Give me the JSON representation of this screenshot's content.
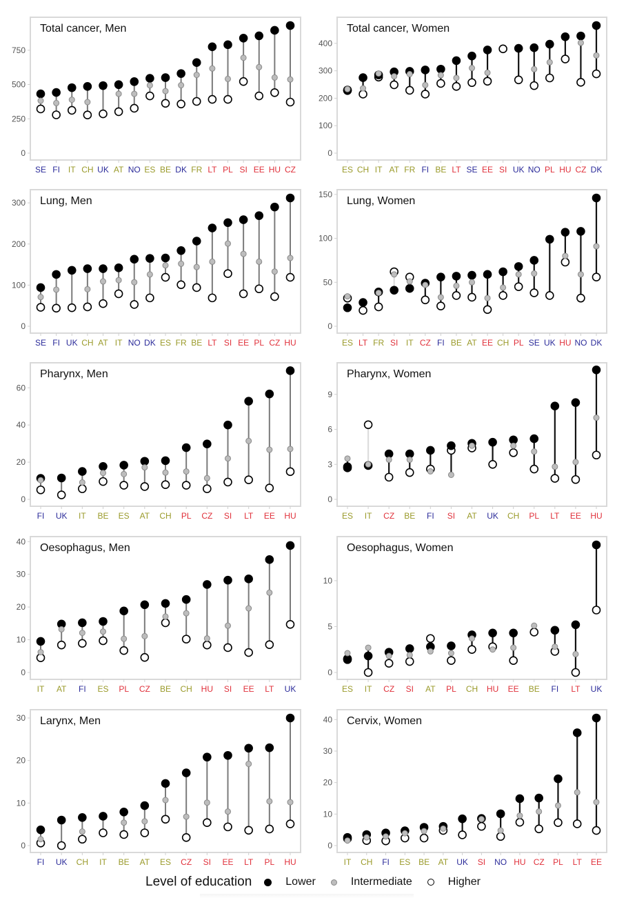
{
  "figure": {
    "legend": {
      "title": "Level of education",
      "items": [
        {
          "key": "lower",
          "label": "Lower"
        },
        {
          "key": "intermediate",
          "label": "Intermediate"
        },
        {
          "key": "higher",
          "label": "Higher"
        }
      ]
    },
    "region_colors": {
      "north": "#2b2b9a",
      "west_south": "#9a9a2a",
      "east": "#e0303a"
    },
    "marker_colors": {
      "lower": "#000000",
      "intermediate": "#bdbdbd",
      "higher": "#ffffff"
    }
  },
  "chart_data": [
    {
      "type": "scatter",
      "title": "Total cancer, Men",
      "ylim": [
        0,
        930
      ],
      "yticks": [
        0,
        250,
        500,
        750
      ],
      "categories": [
        "SE",
        "FI",
        "IT",
        "CH",
        "UK",
        "AT",
        "NO",
        "ES",
        "BE",
        "DK",
        "FR",
        "LT",
        "PL",
        "SI",
        "EE",
        "HU",
        "CZ"
      ],
      "regions": [
        "north",
        "north",
        "west_south",
        "west_south",
        "north",
        "west_south",
        "north",
        "west_south",
        "west_south",
        "north",
        "west_south",
        "east",
        "east",
        "east",
        "east",
        "east",
        "east"
      ],
      "series": [
        {
          "name": "Lower",
          "values": [
            432,
            442,
            477,
            486,
            492,
            499,
            521,
            545,
            550,
            580,
            660,
            775,
            790,
            838,
            855,
            895,
            930
          ]
        },
        {
          "name": "Intermediate",
          "values": [
            382,
            365,
            389,
            372,
            null,
            432,
            432,
            494,
            452,
            495,
            570,
            617,
            541,
            695,
            627,
            551,
            537
          ]
        },
        {
          "name": "Higher",
          "values": [
            322,
            279,
            312,
            278,
            286,
            302,
            327,
            417,
            363,
            358,
            377,
            392,
            392,
            522,
            417,
            441,
            372
          ]
        }
      ]
    },
    {
      "type": "scatter",
      "title": "Total cancer, Women",
      "ylim": [
        0,
        465
      ],
      "yticks": [
        0,
        100,
        200,
        300,
        400
      ],
      "categories": [
        "ES",
        "CH",
        "IT",
        "AT",
        "FR",
        "FI",
        "BE",
        "LT",
        "SE",
        "EE",
        "SI",
        "UK",
        "NO",
        "PL",
        "HU",
        "CZ",
        "DK"
      ],
      "regions": [
        "west_south",
        "west_south",
        "west_south",
        "west_south",
        "west_south",
        "north",
        "west_south",
        "east",
        "north",
        "east",
        "east",
        "north",
        "north",
        "east",
        "east",
        "east",
        "north"
      ],
      "series": [
        {
          "name": "Lower",
          "values": [
            230,
            275,
            285,
            296,
            298,
            303,
            306,
            337,
            354,
            376,
            null,
            382,
            384,
            397,
            424,
            427,
            465
          ]
        },
        {
          "name": "Intermediate",
          "values": [
            233,
            236,
            290,
            280,
            288,
            248,
            284,
            274,
            310,
            293,
            null,
            null,
            306,
            331,
            null,
            402,
            356
          ]
        },
        {
          "name": "Higher",
          "values": [
            228,
            215,
            277,
            249,
            229,
            215,
            254,
            243,
            257,
            262,
            380,
            267,
            246,
            274,
            343,
            258,
            289
          ]
        }
      ]
    },
    {
      "type": "scatter",
      "title": "Lung, Men",
      "ylim": [
        0,
        312
      ],
      "yticks": [
        0,
        100,
        200,
        300
      ],
      "categories": [
        "SE",
        "FI",
        "UK",
        "CH",
        "AT",
        "IT",
        "NO",
        "DK",
        "ES",
        "FR",
        "BE",
        "LT",
        "SI",
        "EE",
        "PL",
        "CZ",
        "HU"
      ],
      "regions": [
        "north",
        "north",
        "north",
        "west_south",
        "west_south",
        "west_south",
        "north",
        "north",
        "west_south",
        "west_south",
        "west_south",
        "east",
        "east",
        "east",
        "east",
        "east",
        "east"
      ],
      "series": [
        {
          "name": "Lower",
          "values": [
            94,
            126,
            136,
            140,
            140,
            142,
            163,
            165,
            166,
            184,
            207,
            239,
            252,
            259,
            269,
            290,
            312
          ]
        },
        {
          "name": "Intermediate",
          "values": [
            71,
            89,
            null,
            90,
            109,
            112,
            107,
            126,
            148,
            152,
            144,
            157,
            201,
            176,
            157,
            133,
            166
          ]
        },
        {
          "name": "Higher",
          "values": [
            46,
            44,
            45,
            47,
            55,
            79,
            53,
            69,
            119,
            101,
            94,
            69,
            128,
            79,
            91,
            72,
            119
          ]
        }
      ]
    },
    {
      "type": "scatter",
      "title": "Lung, Women",
      "ylim": [
        0,
        146
      ],
      "yticks": [
        0,
        50,
        100,
        150
      ],
      "categories": [
        "ES",
        "LT",
        "FR",
        "SI",
        "IT",
        "CZ",
        "FI",
        "BE",
        "AT",
        "EE",
        "CH",
        "PL",
        "SE",
        "UK",
        "HU",
        "NO",
        "DK"
      ],
      "regions": [
        "west_south",
        "east",
        "west_south",
        "east",
        "west_south",
        "east",
        "north",
        "west_south",
        "west_south",
        "east",
        "west_south",
        "east",
        "north",
        "north",
        "east",
        "north",
        "north"
      ],
      "series": [
        {
          "name": "Lower",
          "values": [
            21,
            27,
            39,
            41,
            43,
            49,
            56,
            57,
            58,
            59,
            62,
            68,
            75,
            99,
            107,
            108,
            146
          ]
        },
        {
          "name": "Intermediate",
          "values": [
            34,
            null,
            38,
            59,
            51,
            47,
            33,
            46,
            50,
            32,
            44,
            59,
            60,
            null,
            80,
            59,
            91
          ]
        },
        {
          "name": "Higher",
          "values": [
            32,
            18,
            22,
            62,
            56,
            30,
            23,
            35,
            33,
            19,
            35,
            45,
            38,
            35,
            73,
            32,
            56
          ]
        }
      ]
    },
    {
      "type": "scatter",
      "title": "Pharynx, Men",
      "ylim": [
        0,
        69
      ],
      "yticks": [
        0,
        20,
        40,
        60
      ],
      "categories": [
        "FI",
        "UK",
        "IT",
        "BE",
        "ES",
        "AT",
        "CH",
        "PL",
        "CZ",
        "SI",
        "LT",
        "EE",
        "HU"
      ],
      "regions": [
        "north",
        "north",
        "west_south",
        "west_south",
        "west_south",
        "west_south",
        "west_south",
        "east",
        "east",
        "east",
        "east",
        "east",
        "east"
      ],
      "series": [
        {
          "name": "Lower",
          "values": [
            11.3,
            11.5,
            15,
            17.7,
            18.4,
            20.5,
            20.8,
            27.8,
            29.8,
            40,
            52.8,
            56.7,
            69.2
          ]
        },
        {
          "name": "Intermediate",
          "values": [
            10.3,
            null,
            9.1,
            14.2,
            13.6,
            17.2,
            14.4,
            15,
            11.4,
            22,
            31.4,
            26.7,
            27.1
          ]
        },
        {
          "name": "Higher",
          "values": [
            5.1,
            2.4,
            5.7,
            9.6,
            7.6,
            6.9,
            7.9,
            7.6,
            5.7,
            9.3,
            10.5,
            6.1,
            14.9
          ]
        }
      ]
    },
    {
      "type": "scatter",
      "title": "Pharynx, Women",
      "ylim": [
        0,
        11
      ],
      "yticks": [
        0,
        3,
        6,
        9
      ],
      "categories": [
        "ES",
        "IT",
        "CZ",
        "BE",
        "FI",
        "SI",
        "AT",
        "UK",
        "CH",
        "PL",
        "LT",
        "EE",
        "HU"
      ],
      "regions": [
        "west_south",
        "west_south",
        "east",
        "west_south",
        "north",
        "east",
        "west_south",
        "north",
        "west_south",
        "east",
        "east",
        "east",
        "east"
      ],
      "series": [
        {
          "name": "Lower",
          "values": [
            2.8,
            2.9,
            3.9,
            3.9,
            4.2,
            4.6,
            4.8,
            4.9,
            5.1,
            5.2,
            8.0,
            8.3,
            11.1
          ]
        },
        {
          "name": "Intermediate",
          "values": [
            3.5,
            3.0,
            3.4,
            3.4,
            2.4,
            2.1,
            4.6,
            null,
            4.6,
            4.1,
            2.8,
            3.2,
            7.0
          ]
        },
        {
          "name": "Higher",
          "values": [
            2.7,
            6.4,
            1.9,
            2.3,
            2.6,
            4.2,
            4.4,
            3.0,
            4.0,
            2.6,
            1.8,
            1.7,
            3.8
          ]
        }
      ]
    },
    {
      "type": "scatter",
      "title": "Oesophagus, Men",
      "ylim": [
        0,
        39
      ],
      "yticks": [
        0,
        10,
        20,
        30,
        40
      ],
      "categories": [
        "IT",
        "AT",
        "FI",
        "ES",
        "PL",
        "CZ",
        "BE",
        "CH",
        "HU",
        "SI",
        "EE",
        "LT",
        "UK"
      ],
      "regions": [
        "west_south",
        "west_south",
        "north",
        "west_south",
        "east",
        "east",
        "west_south",
        "west_south",
        "east",
        "east",
        "east",
        "east",
        "north"
      ],
      "series": [
        {
          "name": "Lower",
          "values": [
            9.5,
            14.8,
            15.2,
            15.6,
            18.8,
            20.7,
            21.1,
            22.3,
            26.9,
            28.2,
            28.6,
            34.5,
            38.8
          ]
        },
        {
          "name": "Intermediate",
          "values": [
            6.2,
            13.2,
            12.1,
            12.5,
            10.3,
            11.1,
            17.1,
            18.1,
            10.4,
            14.3,
            19.6,
            24.4,
            null
          ]
        },
        {
          "name": "Higher",
          "values": [
            4.5,
            8.4,
            8.9,
            9.7,
            6.7,
            4.6,
            15.2,
            10.2,
            8.4,
            7.6,
            6.1,
            8.5,
            14.7
          ]
        }
      ]
    },
    {
      "type": "scatter",
      "title": "Oesophagus, Women",
      "ylim": [
        0,
        13.9
      ],
      "yticks": [
        0,
        5,
        10
      ],
      "categories": [
        "ES",
        "IT",
        "CZ",
        "SI",
        "AT",
        "PL",
        "CH",
        "HU",
        "EE",
        "BE",
        "FI",
        "LT",
        "UK"
      ],
      "regions": [
        "west_south",
        "west_south",
        "east",
        "east",
        "west_south",
        "east",
        "west_south",
        "east",
        "east",
        "west_south",
        "north",
        "east",
        "north"
      ],
      "series": [
        {
          "name": "Lower",
          "values": [
            1.5,
            1.8,
            2.2,
            2.6,
            2.8,
            2.9,
            4.1,
            4.3,
            4.3,
            null,
            4.6,
            5.2,
            13.9
          ]
        },
        {
          "name": "Intermediate",
          "values": [
            2.1,
            2.7,
            1.8,
            1.9,
            2.3,
            2.1,
            3.7,
            2.5,
            2.7,
            5.1,
            2.8,
            2.0,
            null
          ]
        },
        {
          "name": "Higher",
          "values": [
            1.4,
            0.0,
            1.0,
            1.2,
            3.7,
            1.3,
            2.5,
            2.8,
            1.3,
            4.4,
            2.3,
            0.0,
            6.8
          ]
        }
      ]
    },
    {
      "type": "scatter",
      "title": "Larynx, Men",
      "ylim": [
        0,
        30
      ],
      "yticks": [
        0,
        10,
        20,
        30
      ],
      "categories": [
        "FI",
        "UK",
        "CH",
        "IT",
        "BE",
        "AT",
        "ES",
        "CZ",
        "SI",
        "EE",
        "LT",
        "PL",
        "HU"
      ],
      "regions": [
        "north",
        "north",
        "west_south",
        "west_south",
        "west_south",
        "west_south",
        "west_south",
        "east",
        "east",
        "east",
        "east",
        "east",
        "east"
      ],
      "series": [
        {
          "name": "Lower",
          "values": [
            3.7,
            6.0,
            6.6,
            6.9,
            7.9,
            9.4,
            14.6,
            17.1,
            20.8,
            21.2,
            22.9,
            23.0,
            30.0
          ]
        },
        {
          "name": "Intermediate",
          "values": [
            1.5,
            null,
            3.3,
            null,
            5.4,
            5.7,
            10.7,
            6.8,
            10.1,
            8.0,
            19.2,
            10.4,
            10.2
          ]
        },
        {
          "name": "Higher",
          "values": [
            0.6,
            0.0,
            1.5,
            3.0,
            2.6,
            3.0,
            6.2,
            1.9,
            5.4,
            4.4,
            3.6,
            3.9,
            5.1
          ]
        }
      ]
    },
    {
      "type": "scatter",
      "title": "Cervix, Women",
      "ylim": [
        0,
        40.5
      ],
      "yticks": [
        0,
        10,
        20,
        30,
        40
      ],
      "categories": [
        "IT",
        "CH",
        "FI",
        "ES",
        "BE",
        "AT",
        "UK",
        "SI",
        "NO",
        "HU",
        "CZ",
        "PL",
        "LT",
        "EE"
      ],
      "regions": [
        "west_south",
        "west_south",
        "north",
        "west_south",
        "west_south",
        "west_south",
        "north",
        "east",
        "north",
        "east",
        "east",
        "east",
        "east",
        "east"
      ],
      "series": [
        {
          "name": "Lower",
          "values": [
            2.6,
            3.5,
            4.0,
            4.7,
            5.8,
            6.1,
            8.5,
            8.6,
            10.1,
            14.9,
            15.1,
            21.2,
            35.8,
            40.5
          ]
        },
        {
          "name": "Intermediate",
          "values": [
            1.6,
            2.6,
            2.9,
            3.9,
            4.6,
            5.4,
            null,
            8.4,
            4.8,
            9.5,
            10.8,
            12.7,
            16.9,
            13.8
          ]
        },
        {
          "name": "Higher",
          "values": [
            2.2,
            1.6,
            1.5,
            2.4,
            2.4,
            4.8,
            3.4,
            6.1,
            2.9,
            7.4,
            5.3,
            7.3,
            6.9,
            4.8
          ]
        }
      ]
    }
  ]
}
